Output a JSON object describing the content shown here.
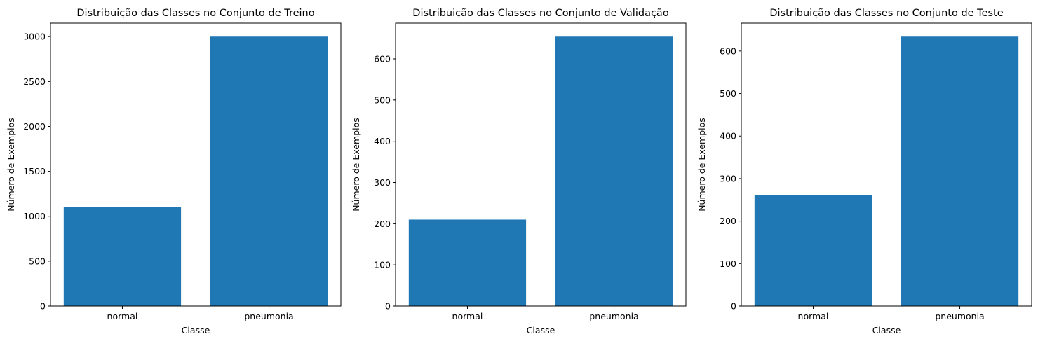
{
  "chart_data": [
    {
      "type": "bar",
      "title": "Distribuição das Classes no Conjunto de Treino",
      "xlabel": "Classe",
      "ylabel": "Número de Exemplos",
      "categories": [
        "normal",
        "pneumonia"
      ],
      "values": [
        1100,
        3000
      ],
      "ylim": [
        0,
        3150
      ],
      "yticks": [
        0,
        500,
        1000,
        1500,
        2000,
        2500,
        3000
      ],
      "bar_color": "#1f77b4",
      "grid": false,
      "legend": "none"
    },
    {
      "type": "bar",
      "title": "Distribuição das Classes no Conjunto de Validação",
      "xlabel": "Classe",
      "ylabel": "Número de Exemplos",
      "categories": [
        "normal",
        "pneumonia"
      ],
      "values": [
        210,
        654
      ],
      "ylim": [
        0,
        686.7
      ],
      "yticks": [
        0,
        100,
        200,
        300,
        400,
        500,
        600
      ],
      "bar_color": "#1f77b4",
      "grid": false,
      "legend": "none"
    },
    {
      "type": "bar",
      "title": "Distribuição das Classes no Conjunto de Teste",
      "xlabel": "Classe",
      "ylabel": "Número de Exemplos",
      "categories": [
        "normal",
        "pneumonia"
      ],
      "values": [
        261,
        634
      ],
      "ylim": [
        0,
        665.7
      ],
      "yticks": [
        0,
        100,
        200,
        300,
        400,
        500,
        600
      ],
      "bar_color": "#1f77b4",
      "grid": false,
      "legend": "none"
    }
  ]
}
